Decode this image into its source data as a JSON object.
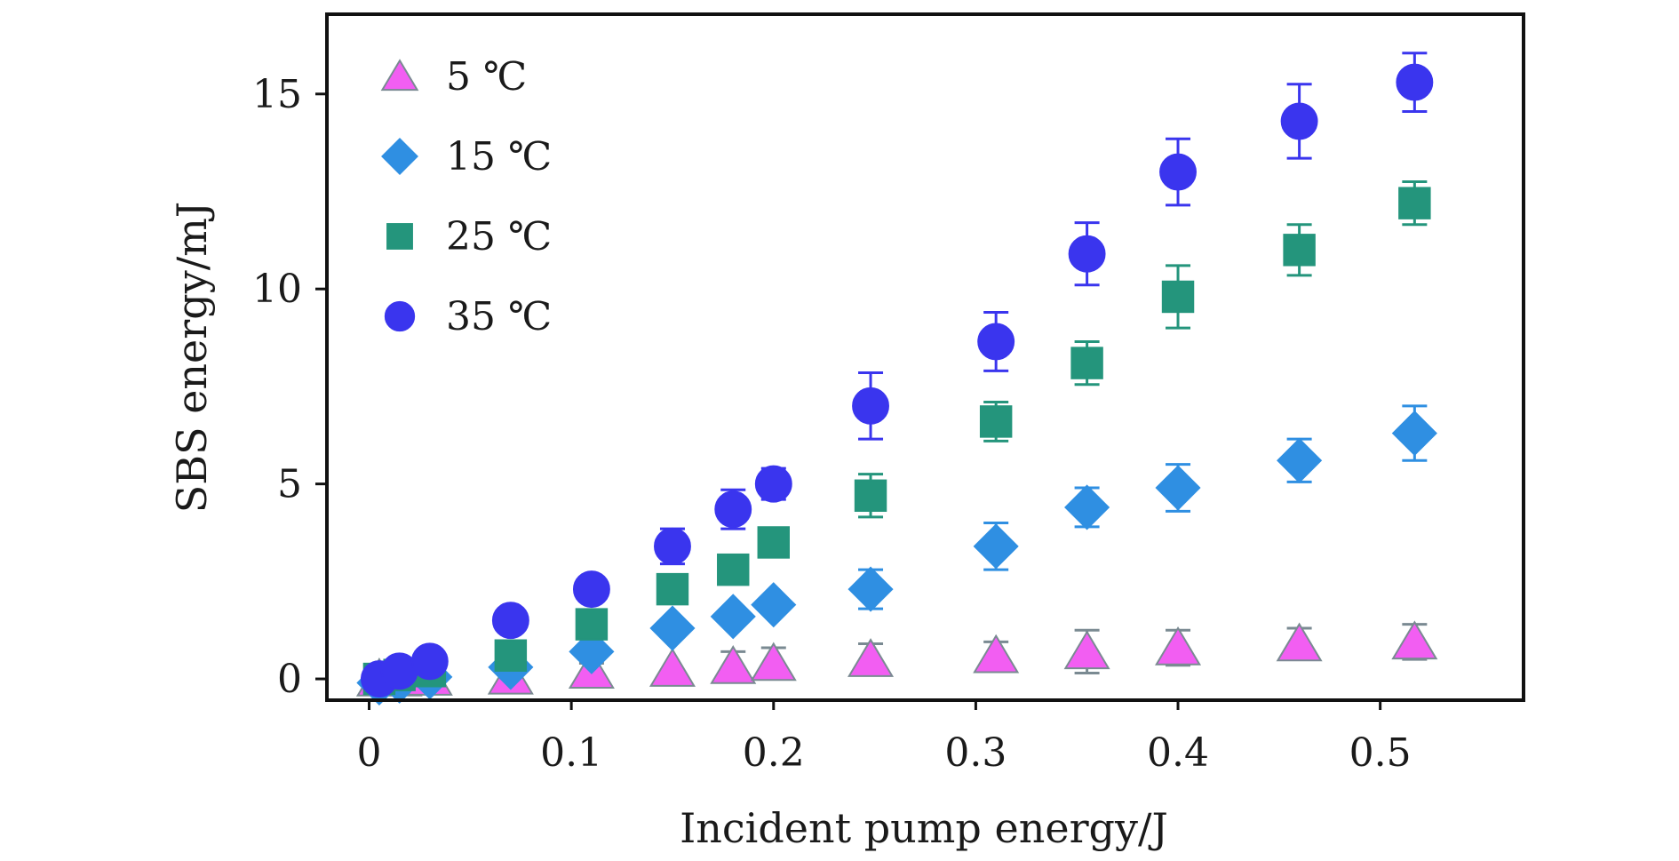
{
  "chart_data": {
    "type": "scatter",
    "title": "",
    "xlabel": "Incident pump energy/J",
    "ylabel": "SBS energy/mJ",
    "xlim": [
      -0.02,
      0.57
    ],
    "ylim": [
      -0.5,
      17.0
    ],
    "xticks": [
      0,
      0.1,
      0.2,
      0.3,
      0.4,
      0.5
    ],
    "xtick_labels": [
      "0",
      "0.1",
      "0.2",
      "0.3",
      "0.4",
      "0.5"
    ],
    "yticks": [
      0,
      5,
      10,
      15
    ],
    "ytick_labels": [
      "0",
      "5",
      "10",
      "15"
    ],
    "grid": false,
    "legend_position": "top-left",
    "series": [
      {
        "name": "5 ℃",
        "marker": "triangle",
        "color": "#f25ef2",
        "edge_color": "#7a8a92",
        "error_color": "#7a8a92",
        "x": [
          0.005,
          0.015,
          0.03,
          0.07,
          0.11,
          0.15,
          0.18,
          0.2,
          0.248,
          0.31,
          0.355,
          0.4,
          0.46,
          0.517
        ],
        "y": [
          0.0,
          0.0,
          0.02,
          0.05,
          0.2,
          0.25,
          0.32,
          0.4,
          0.5,
          0.6,
          0.7,
          0.8,
          0.9,
          0.95
        ],
        "err": [
          0.0,
          0.0,
          0.0,
          0.0,
          0.2,
          0.0,
          0.38,
          0.4,
          0.4,
          0.35,
          0.55,
          0.45,
          0.4,
          0.45
        ]
      },
      {
        "name": "15 ℃",
        "marker": "diamond",
        "color": "#2f8fe2",
        "edge_color": "#2f8fe2",
        "error_color": "#2f8fe2",
        "x": [
          0.005,
          0.015,
          0.03,
          0.07,
          0.11,
          0.15,
          0.18,
          0.2,
          0.248,
          0.31,
          0.355,
          0.4,
          0.46,
          0.517
        ],
        "y": [
          -0.1,
          -0.05,
          0.05,
          0.3,
          0.7,
          1.3,
          1.6,
          1.9,
          2.3,
          3.4,
          4.4,
          4.9,
          5.6,
          6.3
        ],
        "err": [
          0.0,
          0.0,
          0.0,
          0.0,
          0.0,
          0.0,
          0.0,
          0.0,
          0.5,
          0.6,
          0.5,
          0.6,
          0.55,
          0.7
        ]
      },
      {
        "name": "25 ℃",
        "marker": "square",
        "color": "#24957c",
        "edge_color": "#24957c",
        "error_color": "#24957c",
        "x": [
          0.005,
          0.015,
          0.03,
          0.07,
          0.11,
          0.15,
          0.18,
          0.2,
          0.248,
          0.31,
          0.355,
          0.4,
          0.46,
          0.517
        ],
        "y": [
          0.0,
          0.1,
          0.2,
          0.6,
          1.4,
          2.3,
          2.8,
          3.5,
          4.7,
          6.6,
          8.1,
          9.8,
          11.0,
          12.2
        ],
        "err": [
          0.0,
          0.0,
          0.0,
          0.0,
          0.0,
          0.0,
          0.35,
          0.0,
          0.55,
          0.5,
          0.55,
          0.8,
          0.65,
          0.55
        ]
      },
      {
        "name": "35 ℃",
        "marker": "circle",
        "color": "#3a35ee",
        "edge_color": "#3a35ee",
        "error_color": "#3a35ee",
        "x": [
          0.005,
          0.015,
          0.03,
          0.07,
          0.11,
          0.15,
          0.18,
          0.2,
          0.248,
          0.31,
          0.355,
          0.4,
          0.46,
          0.517
        ],
        "y": [
          0.0,
          0.2,
          0.45,
          1.5,
          2.3,
          3.4,
          4.35,
          5.0,
          7.0,
          8.65,
          10.9,
          13.0,
          14.3,
          15.3
        ],
        "err": [
          0.0,
          0.0,
          0.0,
          0.0,
          0.0,
          0.45,
          0.5,
          0.4,
          0.85,
          0.75,
          0.8,
          0.85,
          0.95,
          0.75
        ]
      }
    ]
  }
}
